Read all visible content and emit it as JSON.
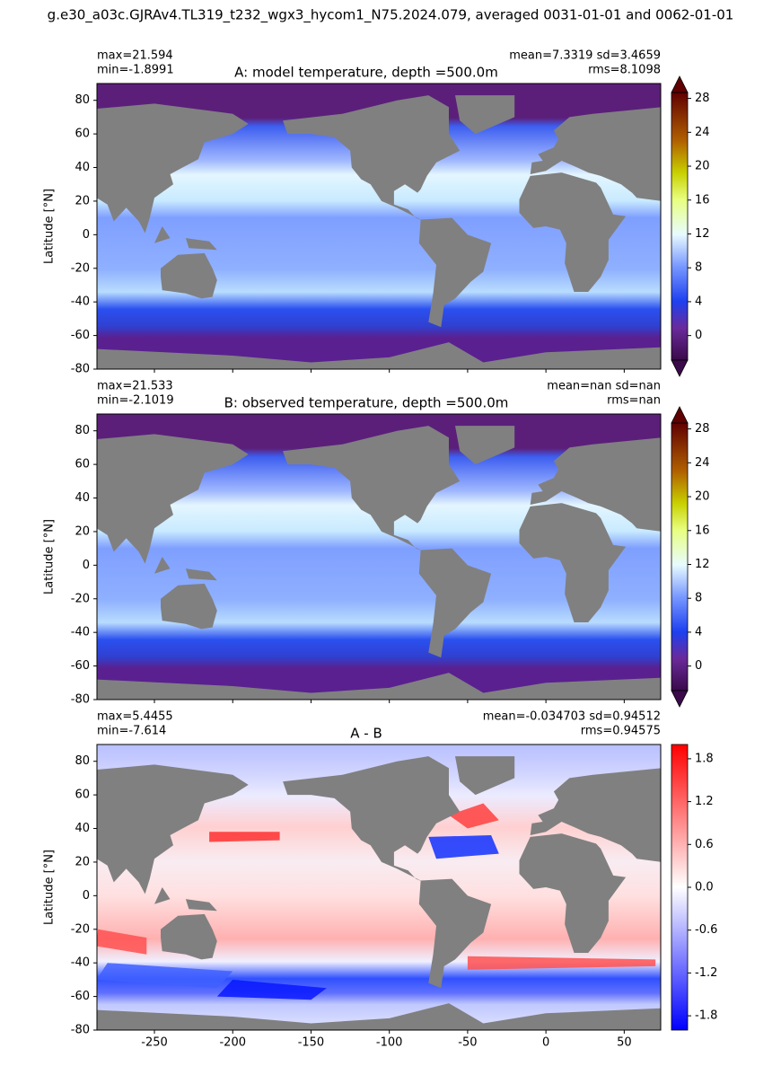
{
  "title": "g.e30_a03c.GJRAv4.TL319_t232_wgx3_hycom1_N75.2024.079, averaged 0031-01-01 and 0062-01-01",
  "xlim": [
    -286.7,
    73.3
  ],
  "xticks": [
    -250,
    -200,
    -150,
    -100,
    -50,
    0,
    50
  ],
  "panels": [
    {
      "title": "A: model temperature, depth =500.0m",
      "max_text": "max=21.594",
      "min_text": "min=-1.8991",
      "stats_text": "mean=7.3319 sd=3.4659",
      "rms_text": "rms=8.1098",
      "ylabel": "Latitude [°N]",
      "ylim": [
        -80,
        90
      ],
      "yticks": [
        -80,
        -60,
        -40,
        -20,
        0,
        20,
        40,
        60,
        80
      ],
      "colorbar": {
        "lim": [
          -2.9,
          28.7
        ],
        "ticks": [
          0,
          4,
          8,
          12,
          16,
          20,
          24,
          28
        ],
        "extend": "both"
      }
    },
    {
      "title": "B: observed temperature, depth =500.0m",
      "max_text": "max=21.533",
      "min_text": "min=-2.1019",
      "stats_text": "mean=nan sd=nan",
      "rms_text": "rms=nan",
      "ylabel": "Latitude [°N]",
      "ylim": [
        -80,
        90
      ],
      "yticks": [
        -80,
        -60,
        -40,
        -20,
        0,
        20,
        40,
        60,
        80
      ],
      "colorbar": {
        "lim": [
          -2.9,
          28.7
        ],
        "ticks": [
          0,
          4,
          8,
          12,
          16,
          20,
          24,
          28
        ],
        "extend": "both"
      }
    },
    {
      "title": "A - B",
      "max_text": "max=5.4455",
      "min_text": "min=-7.614",
      "stats_text": "mean=-0.034703 sd=0.94512",
      "rms_text": "rms=0.94575",
      "ylabel": "Latitude [°N]",
      "ylim": [
        -80,
        90
      ],
      "yticks": [
        -80,
        -60,
        -40,
        -20,
        0,
        20,
        40,
        60,
        80
      ],
      "colorbar": {
        "lim": [
          -2,
          2
        ],
        "ticks": [
          -1.8,
          -1.2,
          -0.6,
          {
            "value": 0,
            "label": "0.0"
          },
          0.6,
          1.2,
          1.8
        ],
        "extend": "neither"
      }
    }
  ]
}
